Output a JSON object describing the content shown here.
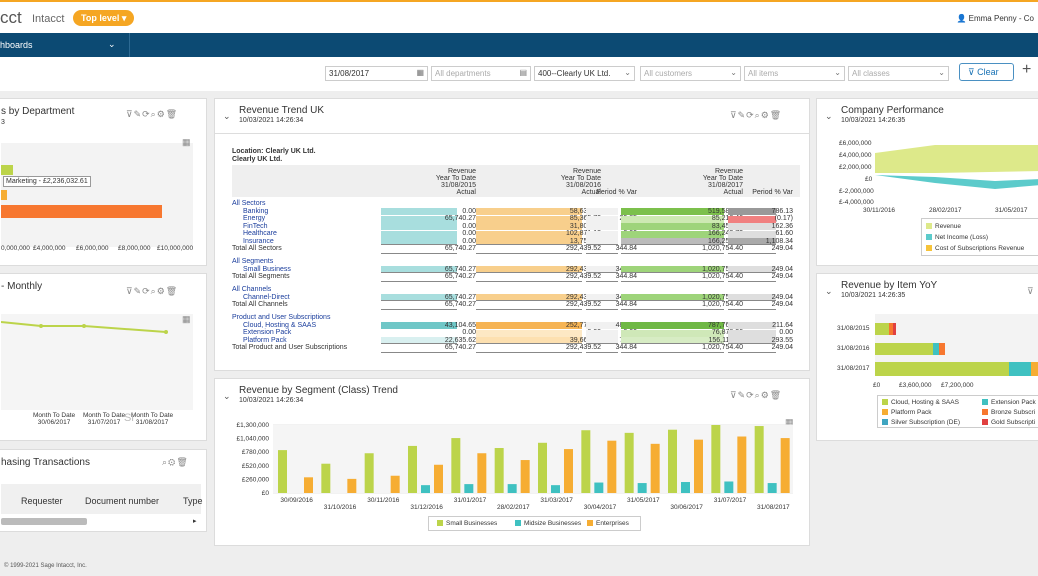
{
  "header": {
    "logo": "cct",
    "product": "Intacct",
    "level": "Top level",
    "user": "Emma Penny - Co"
  },
  "nav": {
    "dashboards": "hboards"
  },
  "filters": {
    "date": "31/08/2017",
    "departments": "All departments",
    "location": "400--Clearly UK Ltd.",
    "customers": "All customers",
    "items": "All items",
    "classes": "All classes",
    "clear": "Clear"
  },
  "dept": {
    "title": "s by Department",
    "sub": "3",
    "tooltip": "Marketing - £2,236,032.61",
    "ticks": [
      "0,000,000",
      "£4,000,000",
      "£6,000,000",
      "£8,000,000",
      "£10,000,000"
    ]
  },
  "monthly": {
    "title": "- Monthly",
    "xlabels": [
      [
        "Month To Date",
        "30/06/2017"
      ],
      [
        "Month To Date",
        "31/07/2017"
      ],
      [
        "Month To Date",
        "31/08/2017"
      ]
    ],
    "watermark": "Si"
  },
  "purchasing": {
    "title": "hasing Transactions",
    "cols": [
      "Requester",
      "Document number",
      "Type"
    ]
  },
  "trend": {
    "title": "Revenue Trend UK",
    "sub": "10/03/2021 14:26:34",
    "loc1": "Location: Clearly UK Ltd.",
    "loc2": "Clearly UK Ltd.",
    "hdr": [
      [
        "Revenue",
        "Year To Date",
        "31/08/2015",
        "Actual"
      ],
      [
        "Revenue",
        "Year To Date",
        "31/08/2016",
        "Actual",
        "Period % Var"
      ],
      [
        "Revenue",
        "Year To Date",
        "31/08/2017",
        "Actual",
        "Period % Var"
      ]
    ],
    "rows": [
      {
        "label": "All Sectors",
        "kind": "group"
      },
      {
        "label": "Banking",
        "v": [
          "0.00",
          "58,635.61",
          "0.00",
          "519,587.89",
          "786.13"
        ]
      },
      {
        "label": "Energy",
        "v": [
          "65,740.27",
          "85,365.70",
          "29.85",
          "85,216.46",
          "(0.17)"
        ]
      },
      {
        "label": "FinTech",
        "v": [
          "0.00",
          "31,808.20",
          "0.00",
          "83,452.06",
          "162.36"
        ]
      },
      {
        "label": "Healthcare",
        "v": [
          "0.00",
          "102,871.13",
          "0.00",
          "166,242.72",
          "61.60"
        ]
      },
      {
        "label": "Insurance",
        "v": [
          "0.00",
          "13,758.88",
          "0.00",
          "166,255.27",
          "1,108.34"
        ]
      },
      {
        "label": "Total All Sectors",
        "kind": "total",
        "v": [
          "65,740.27",
          "292,439.52",
          "344.84",
          "1,020,754.40",
          "249.04"
        ]
      },
      {
        "label": "All Segments",
        "kind": "group"
      },
      {
        "label": "Small Business",
        "v": [
          "65,740.27",
          "292,439.52",
          "344.84",
          "1,020,754.40",
          "249.04"
        ]
      },
      {
        "label": "Total All Segments",
        "kind": "total",
        "v": [
          "65,740.27",
          "292,439.52",
          "344.84",
          "1,020,754.40",
          "249.04"
        ]
      },
      {
        "label": "All Channels",
        "kind": "group"
      },
      {
        "label": "Channel-Direct",
        "v": [
          "65,740.27",
          "292,439.52",
          "344.84",
          "1,020,754.40",
          "249.04"
        ]
      },
      {
        "label": "Total All Channels",
        "kind": "total",
        "v": [
          "65,740.27",
          "292,439.52",
          "344.84",
          "1,020,754.40",
          "249.04"
        ]
      },
      {
        "label": "Product and User Subscriptions",
        "kind": "group"
      },
      {
        "label": "Cloud, Hosting & SAAS",
        "v": [
          "43,104.65",
          "252,771.78",
          "486.41",
          "787,762.40",
          "211.64"
        ]
      },
      {
        "label": "Extension Pack",
        "v": [
          "0.00",
          "0.00",
          "0.00",
          "76,876.36",
          "0.00"
        ]
      },
      {
        "label": "Platform Pack",
        "v": [
          "22,635.62",
          "39,667.74",
          "75.24",
          "156,115.64",
          "293.55"
        ]
      },
      {
        "label": "Total Product and User Subscriptions",
        "kind": "total",
        "v": [
          "65,740.27",
          "292,439.52",
          "344.84",
          "1,020,754.40",
          "249.04"
        ]
      }
    ]
  },
  "segment": {
    "title": "Revenue by Segment (Class) Trend",
    "sub": "10/03/2021 14:26:34",
    "chart_data": {
      "type": "bar",
      "yticks": [
        "£1,300,000",
        "£1,040,000",
        "£780,000",
        "£520,000",
        "£260,000",
        "£0"
      ],
      "ylim": [
        0,
        1300000
      ],
      "x_top": [
        "30/09/2016",
        "30/11/2016",
        "31/01/2017",
        "31/03/2017",
        "31/05/2017",
        "31/07/2017"
      ],
      "x_bottom": [
        "31/10/2016",
        "31/12/2016",
        "28/02/2017",
        "30/04/2017",
        "30/06/2017",
        "31/08/2017"
      ],
      "series": [
        {
          "name": "Small Businesses",
          "color": "#bcd44a",
          "values": [
            820000,
            560000,
            760000,
            900000,
            1050000,
            860000,
            960000,
            1200000,
            1150000,
            1210000,
            1300000,
            1280000
          ]
        },
        {
          "name": "Midsize Businesses",
          "color": "#3fc1c1",
          "values": [
            0,
            0,
            0,
            150000,
            170000,
            170000,
            150000,
            200000,
            190000,
            210000,
            220000,
            190000
          ]
        },
        {
          "name": "Enterprises",
          "color": "#f6ad33",
          "values": [
            300000,
            270000,
            330000,
            540000,
            760000,
            630000,
            840000,
            1000000,
            940000,
            1020000,
            1080000,
            1050000
          ]
        }
      ]
    }
  },
  "perf": {
    "title": "Company Performance",
    "sub": "10/03/2021 14:26:35",
    "yticks": [
      "£6,000,000",
      "£4,000,000",
      "£2,000,000",
      "£0",
      "£-2,000,000",
      "£-4,000,000"
    ],
    "xticks": [
      "30/11/2016",
      "28/02/2017",
      "31/05/2017"
    ],
    "legend": [
      "Revenue",
      "Net Income (Loss)",
      "Cost of Subscriptions Revenue"
    ]
  },
  "item": {
    "title": "Revenue by Item YoY",
    "sub": "10/03/2021 14:26:35",
    "cats": [
      "31/08/2015",
      "31/08/2016",
      "31/08/2017"
    ],
    "xticks": [
      "£0",
      "£3,600,000",
      "£7,200,000"
    ],
    "legend": [
      "Cloud, Hosting & SAAS",
      "Extension Pack",
      "Platform Pack",
      "Bronze Subscri",
      "Silver Subscription (DE)",
      "Gold Subscripti"
    ]
  },
  "footer": "© 1999-2021 Sage Intacct, Inc."
}
